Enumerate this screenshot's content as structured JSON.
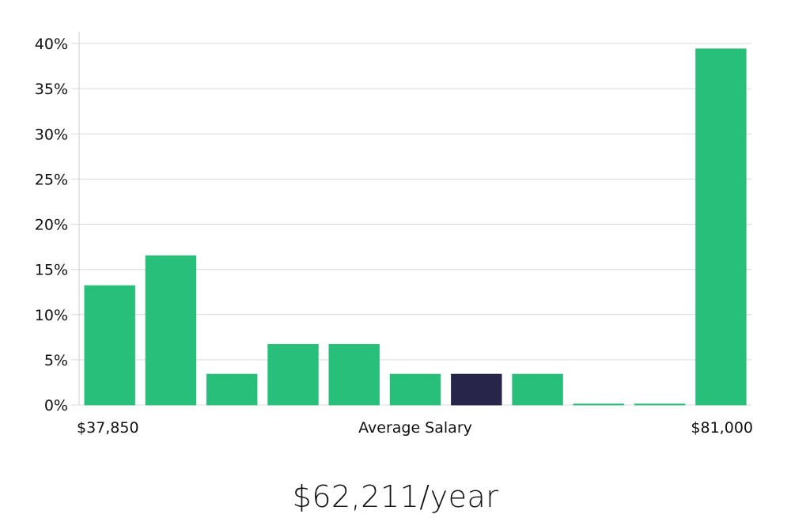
{
  "chart_data": {
    "type": "bar",
    "categories": [
      "1",
      "2",
      "3",
      "4",
      "5",
      "6",
      "7",
      "8",
      "9",
      "10",
      "11"
    ],
    "values": [
      13.2,
      16.5,
      3.4,
      6.7,
      6.7,
      3.4,
      3.4,
      3.4,
      0.1,
      0.1,
      39.4
    ],
    "highlight_index": 6,
    "colors": {
      "bar": "#28bf7a",
      "highlight": "#27264a",
      "grid": "#d9d9d9",
      "axis": "#cccccc",
      "text": "#111111"
    },
    "yticks": [
      "0%",
      "5%",
      "10%",
      "15%",
      "20%",
      "25%",
      "30%",
      "35%",
      "40%"
    ],
    "ylim": [
      0,
      40
    ],
    "grid": true,
    "x_labels": {
      "min": "$37,850",
      "mid": "Average Salary",
      "max": "$81,000"
    }
  },
  "summary": {
    "salary": "$62,211/year"
  }
}
